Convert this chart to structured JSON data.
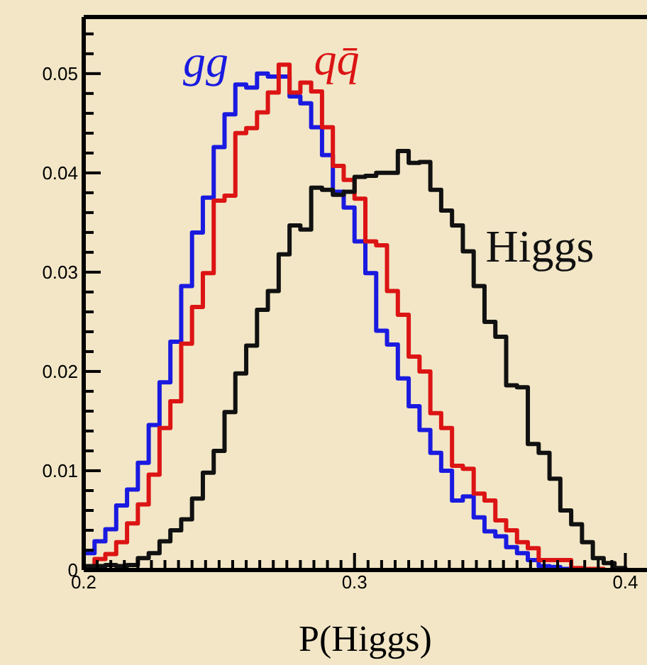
{
  "chart_data": {
    "type": "histogram",
    "xlabel": "P(Higgs)",
    "bins": [
      0.2,
      0.204,
      0.208,
      0.212,
      0.216,
      0.22,
      0.224,
      0.228,
      0.232,
      0.236,
      0.24,
      0.244,
      0.248,
      0.252,
      0.256,
      0.26,
      0.264,
      0.268,
      0.272,
      0.276,
      0.28,
      0.284,
      0.288,
      0.292,
      0.296,
      0.3,
      0.304,
      0.308,
      0.312,
      0.316,
      0.32,
      0.324,
      0.328,
      0.332,
      0.336,
      0.34,
      0.344,
      0.348,
      0.352,
      0.356,
      0.36,
      0.364,
      0.368,
      0.372,
      0.376,
      0.38,
      0.384,
      0.388,
      0.392,
      0.396,
      0.4
    ],
    "series": [
      {
        "name": "gg",
        "color": "#1a1ae0",
        "values": [
          0.0017,
          0.0029,
          0.0041,
          0.0065,
          0.0081,
          0.0108,
          0.0146,
          0.0189,
          0.023,
          0.0286,
          0.034,
          0.0375,
          0.0426,
          0.0459,
          0.0489,
          0.0486,
          0.05,
          0.0497,
          0.0497,
          0.0477,
          0.047,
          0.0446,
          0.0418,
          0.0381,
          0.0365,
          0.0331,
          0.0299,
          0.0241,
          0.0227,
          0.0193,
          0.0165,
          0.0141,
          0.0118,
          0.01,
          0.007,
          0.0074,
          0.0053,
          0.0039,
          0.0034,
          0.0023,
          0.0017,
          0.001,
          0.0004,
          0.0003,
          0.0001,
          0,
          0,
          0,
          0,
          0
        ]
      },
      {
        "name": "qq̄",
        "color": "#dc1414",
        "values": [
          0.0002,
          0.0011,
          0.0016,
          0.0028,
          0.0047,
          0.0066,
          0.0096,
          0.0143,
          0.017,
          0.0228,
          0.0265,
          0.0299,
          0.0372,
          0.0377,
          0.044,
          0.0445,
          0.0461,
          0.0481,
          0.0509,
          0.0481,
          0.0491,
          0.0482,
          0.0446,
          0.0407,
          0.0393,
          0.0374,
          0.0331,
          0.0327,
          0.0281,
          0.0257,
          0.0215,
          0.02,
          0.0158,
          0.0143,
          0.0105,
          0.0102,
          0.0077,
          0.007,
          0.005,
          0.004,
          0.0028,
          0.0022,
          0.001,
          0.001,
          0.001,
          0.0002,
          0.0001,
          0.0001,
          0,
          0
        ]
      },
      {
        "name": "Higgs",
        "color": "#111111",
        "values": [
          0.0004,
          0.0004,
          0.0005,
          0.0004,
          0.0005,
          0.0012,
          0.0017,
          0.0029,
          0.004,
          0.0051,
          0.0072,
          0.0098,
          0.012,
          0.0159,
          0.0198,
          0.0226,
          0.0262,
          0.0281,
          0.0318,
          0.0347,
          0.0343,
          0.0385,
          0.0383,
          0.0378,
          0.0381,
          0.0396,
          0.0397,
          0.04,
          0.04,
          0.0422,
          0.041,
          0.0411,
          0.0383,
          0.0362,
          0.0347,
          0.0321,
          0.0286,
          0.025,
          0.0235,
          0.0186,
          0.0184,
          0.0127,
          0.0118,
          0.0092,
          0.006,
          0.0046,
          0.0028,
          0.0012,
          0.0007,
          0.0002
        ]
      }
    ],
    "xlim": [
      0.2,
      0.408
    ],
    "ylim": [
      0,
      0.0557
    ],
    "xticks": [
      0.2,
      {
        "value": 0.205,
        "label": null
      },
      {
        "value": 0.21,
        "label": null
      },
      {
        "value": 0.215,
        "label": null
      },
      {
        "value": 0.22,
        "label": null
      },
      {
        "value": 0.225,
        "label": null
      },
      {
        "value": 0.23,
        "label": null
      },
      {
        "value": 0.235,
        "label": null
      },
      {
        "value": 0.24,
        "label": null
      },
      {
        "value": 0.245,
        "label": null
      },
      {
        "value": 0.25,
        "label": null
      },
      {
        "value": 0.255,
        "label": null
      },
      {
        "value": 0.26,
        "label": null
      },
      {
        "value": 0.265,
        "label": null
      },
      {
        "value": 0.27,
        "label": null
      },
      {
        "value": 0.275,
        "label": null
      },
      {
        "value": 0.28,
        "label": null
      },
      {
        "value": 0.285,
        "label": null
      },
      {
        "value": 0.29,
        "label": null
      },
      {
        "value": 0.295,
        "label": null
      },
      0.3,
      {
        "value": 0.305,
        "label": null
      },
      {
        "value": 0.31,
        "label": null
      },
      {
        "value": 0.315,
        "label": null
      },
      {
        "value": 0.32,
        "label": null
      },
      {
        "value": 0.325,
        "label": null
      },
      {
        "value": 0.33,
        "label": null
      },
      {
        "value": 0.335,
        "label": null
      },
      {
        "value": 0.34,
        "label": null
      },
      {
        "value": 0.345,
        "label": null
      },
      {
        "value": 0.35,
        "label": null
      },
      {
        "value": 0.355,
        "label": null
      },
      {
        "value": 0.36,
        "label": null
      },
      {
        "value": 0.365,
        "label": null
      },
      {
        "value": 0.37,
        "label": null
      },
      {
        "value": 0.375,
        "label": null
      },
      {
        "value": 0.38,
        "label": null
      },
      {
        "value": 0.385,
        "label": null
      },
      {
        "value": 0.39,
        "label": null
      },
      {
        "value": 0.395,
        "label": null
      },
      0.4
    ],
    "yticks": [
      0,
      {
        "value": 0.002,
        "label": null
      },
      {
        "value": 0.004,
        "label": null
      },
      {
        "value": 0.006,
        "label": null
      },
      {
        "value": 0.008,
        "label": null
      },
      0.01,
      {
        "value": 0.012,
        "label": null
      },
      {
        "value": 0.014,
        "label": null
      },
      {
        "value": 0.016,
        "label": null
      },
      {
        "value": 0.018,
        "label": null
      },
      0.02,
      {
        "value": 0.022,
        "label": null
      },
      {
        "value": 0.024,
        "label": null
      },
      {
        "value": 0.026,
        "label": null
      },
      {
        "value": 0.028,
        "label": null
      },
      0.03,
      {
        "value": 0.032,
        "label": null
      },
      {
        "value": 0.034,
        "label": null
      },
      {
        "value": 0.036,
        "label": null
      },
      {
        "value": 0.038,
        "label": null
      },
      0.04,
      {
        "value": 0.042,
        "label": null
      },
      {
        "value": 0.044,
        "label": null
      },
      {
        "value": 0.046,
        "label": null
      },
      {
        "value": 0.048,
        "label": null
      },
      0.05,
      {
        "value": 0.052,
        "label": null
      },
      {
        "value": 0.054,
        "label": null
      }
    ]
  }
}
